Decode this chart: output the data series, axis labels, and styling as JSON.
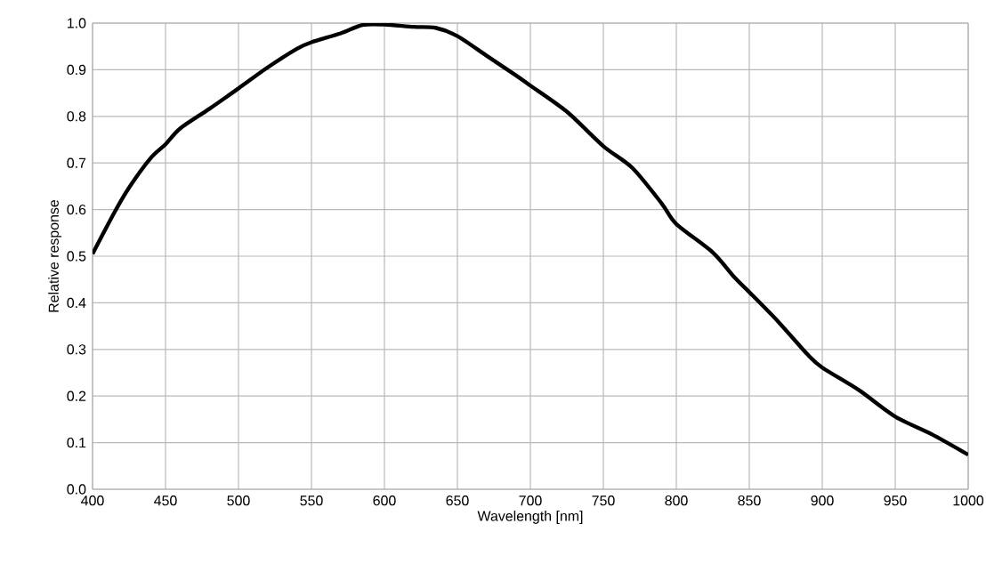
{
  "chart_data": {
    "type": "line",
    "xlabel": "Wavelength  [nm]",
    "ylabel": "Relative  response",
    "x": [
      400,
      415,
      425,
      440,
      450,
      460,
      480,
      500,
      520,
      540,
      550,
      570,
      585,
      600,
      620,
      635,
      650,
      670,
      690,
      700,
      725,
      750,
      770,
      790,
      800,
      825,
      840,
      850,
      870,
      890,
      900,
      925,
      950,
      975,
      1000
    ],
    "series": [
      {
        "color": "#000000",
        "values": [
          0.505,
          0.594,
          0.647,
          0.711,
          0.74,
          0.774,
          0.816,
          0.86,
          0.905,
          0.945,
          0.959,
          0.978,
          0.996,
          0.997,
          0.992,
          0.99,
          0.972,
          0.93,
          0.888,
          0.866,
          0.81,
          0.736,
          0.689,
          0.613,
          0.569,
          0.508,
          0.454,
          0.423,
          0.359,
          0.289,
          0.261,
          0.213,
          0.156,
          0.118,
          0.074
        ]
      }
    ],
    "xlim": [
      400,
      1000
    ],
    "xticks": [
      400,
      450,
      500,
      550,
      600,
      650,
      700,
      750,
      800,
      850,
      900,
      950,
      1000
    ],
    "ylim": [
      0,
      1
    ],
    "yticks": [
      {
        "value": 0,
        "label": "0.0"
      },
      {
        "value": 0.1,
        "label": "0.1"
      },
      {
        "value": 0.2,
        "label": "0.2"
      },
      {
        "value": 0.3,
        "label": "0.3"
      },
      {
        "value": 0.4,
        "label": "0.4"
      },
      {
        "value": 0.5,
        "label": "0.5"
      },
      {
        "value": 0.6,
        "label": "0.6"
      },
      {
        "value": 0.7,
        "label": "0.7"
      },
      {
        "value": 0.8,
        "label": "0.8"
      },
      {
        "value": 0.9,
        "label": "0.9"
      },
      {
        "value": 1,
        "label": "1.0"
      }
    ],
    "grid": true,
    "marker": "none",
    "line_style": "solid"
  }
}
